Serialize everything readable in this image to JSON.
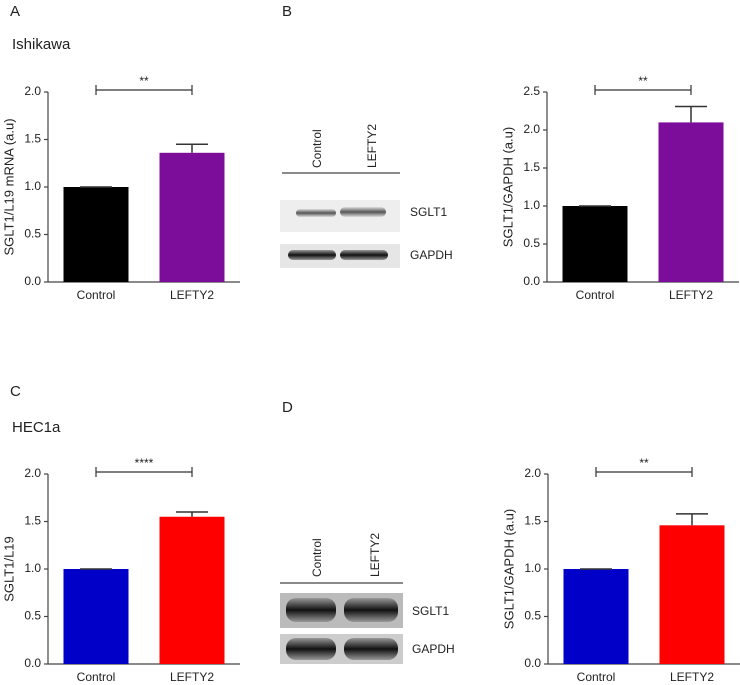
{
  "panels": [
    {
      "label": "A",
      "cell_line": "Ishikawa"
    },
    {
      "label": "B"
    },
    {
      "label": "C",
      "cell_line": "HEC1a"
    },
    {
      "label": "D"
    }
  ],
  "blots": [
    {
      "lanes": [
        "Control",
        "LEFTY2"
      ],
      "bands": [
        "SGLT1",
        "GAPDH"
      ]
    },
    {
      "lanes": [
        "Control",
        "LEFTY2"
      ],
      "bands": [
        "SGLT1",
        "GAPDH"
      ]
    }
  ],
  "chart_data": [
    {
      "type": "bar",
      "ylabel": "SGLT1/L19 mRNA (a.u)",
      "categories": [
        "Control",
        "LEFTY2"
      ],
      "values": [
        1.0,
        1.36
      ],
      "errors": [
        0,
        0.09
      ],
      "colors": [
        "#000000",
        "#7b0d9a"
      ],
      "significance": "**",
      "ylim": [
        0,
        2
      ],
      "yticks": [
        {
          "value": 0,
          "label": "0.0"
        },
        {
          "value": 0.5,
          "label": "0.5"
        },
        {
          "value": 1,
          "label": "1.0"
        },
        {
          "value": 1.5,
          "label": "1.5"
        },
        {
          "value": 2,
          "label": "2.0"
        }
      ]
    },
    {
      "type": "bar",
      "ylabel": "SGLT1/GAPDH (a.u)",
      "categories": [
        "Control",
        "LEFTY2"
      ],
      "values": [
        1.0,
        2.1
      ],
      "errors": [
        0,
        0.21
      ],
      "colors": [
        "#000000",
        "#7b0d9a"
      ],
      "significance": "**",
      "ylim": [
        0,
        2.5
      ],
      "yticks": [
        {
          "value": 0,
          "label": "0.0"
        },
        {
          "value": 0.5,
          "label": "0.5"
        },
        {
          "value": 1,
          "label": "1.0"
        },
        {
          "value": 1.5,
          "label": "1.5"
        },
        {
          "value": 2,
          "label": "2.0"
        },
        {
          "value": 2.5,
          "label": "2.5"
        }
      ]
    },
    {
      "type": "bar",
      "ylabel": "SGLT1/L19",
      "categories": [
        "Control",
        "LEFTY2"
      ],
      "values": [
        1.0,
        1.55
      ],
      "errors": [
        0,
        0.05
      ],
      "colors": [
        "#0000c8",
        "#ff0000"
      ],
      "significance": "****",
      "ylim": [
        0,
        2
      ],
      "yticks": [
        {
          "value": 0,
          "label": "0.0"
        },
        {
          "value": 0.5,
          "label": "0.5"
        },
        {
          "value": 1,
          "label": "1.0"
        },
        {
          "value": 1.5,
          "label": "1.5"
        },
        {
          "value": 2,
          "label": "2.0"
        }
      ]
    },
    {
      "type": "bar",
      "ylabel": "SGLT1/GAPDH (a.u)",
      "categories": [
        "Control",
        "LEFTY2"
      ],
      "values": [
        1.0,
        1.46
      ],
      "errors": [
        0,
        0.12
      ],
      "colors": [
        "#0000c8",
        "#ff0000"
      ],
      "significance": "**",
      "ylim": [
        0,
        2
      ],
      "yticks": [
        {
          "value": 0,
          "label": "0.0"
        },
        {
          "value": 0.5,
          "label": "0.5"
        },
        {
          "value": 1,
          "label": "1.0"
        },
        {
          "value": 1.5,
          "label": "1.5"
        },
        {
          "value": 2,
          "label": "2.0"
        }
      ]
    }
  ]
}
